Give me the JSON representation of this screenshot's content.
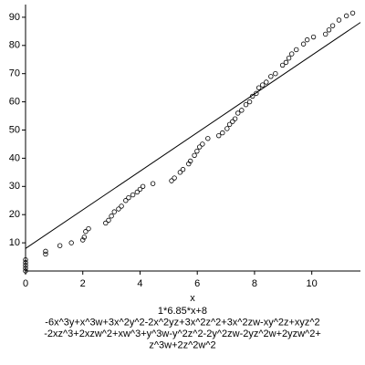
{
  "chart_data": {
    "type": "scatter",
    "xlabel": "x",
    "captions": [
      "1*6.85*x+8",
      "-6x^3y+x^3w+3x^2y^2-2x^2yz+3x^2z^2+3x^2zw-xy^2z+xyz^2",
      "-2xz^3+2xzw^2+xw^3+y^3w-y^2z^2-2y^2zw-2yz^2w+2yzw^2+",
      "z^3w+2z^2w^2"
    ],
    "fit": {
      "slope": 6.85,
      "intercept": 8
    },
    "x": [
      0,
      0,
      0,
      0,
      0,
      0.7,
      0.7,
      1.2,
      1.6,
      2.0,
      2.05,
      2.1,
      2.2,
      2.8,
      2.9,
      3.0,
      3.1,
      3.25,
      3.35,
      3.5,
      3.6,
      3.75,
      3.9,
      4.0,
      4.1,
      4.45,
      5.1,
      5.2,
      5.4,
      5.5,
      5.7,
      5.76,
      5.9,
      5.99,
      6.08,
      6.18,
      6.37,
      6.75,
      6.88,
      7.04,
      7.13,
      7.23,
      7.32,
      7.42,
      7.55,
      7.7,
      7.83,
      7.93,
      8.06,
      8.15,
      8.28,
      8.41,
      8.57,
      8.73,
      8.98,
      9.1,
      9.2,
      9.3,
      9.46,
      9.71,
      9.84,
      10.06,
      10.48,
      10.6,
      10.73,
      10.95,
      11.21,
      11.43
    ],
    "y": [
      0,
      1,
      2,
      3,
      4,
      6,
      7,
      9,
      10,
      11,
      12,
      14,
      15,
      17,
      18,
      19.5,
      21,
      22,
      23,
      25,
      26,
      27,
      28,
      29,
      30,
      31,
      32,
      33,
      35,
      36,
      38,
      39,
      41,
      42.5,
      44,
      45,
      47,
      48,
      49,
      50.5,
      52,
      53,
      54,
      56,
      57,
      59,
      60,
      62,
      63,
      65,
      66,
      67,
      69,
      70,
      73,
      74,
      75.5,
      77,
      78.5,
      80.5,
      82,
      83,
      84,
      85.5,
      87,
      89,
      90.5,
      91.5
    ],
    "color": "#000000",
    "xlim": [
      0,
      11.7
    ],
    "ylim": [
      0,
      94.5
    ],
    "xticks": [
      0,
      2,
      4,
      6,
      8,
      10
    ],
    "yticks": [
      10,
      20,
      30,
      40,
      50,
      60,
      70,
      80,
      90
    ]
  }
}
